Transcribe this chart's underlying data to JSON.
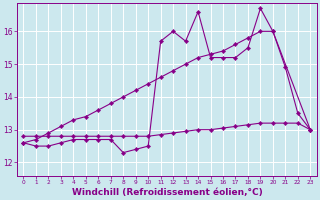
{
  "background_color": "#cce8ee",
  "grid_color": "#ffffff",
  "line_color": "#880088",
  "xlabel": "Windchill (Refroidissement éolien,°C)",
  "xlabel_fontsize": 6.5,
  "xtick_labels": [
    "0",
    "1",
    "2",
    "3",
    "4",
    "5",
    "6",
    "7",
    "8",
    "9",
    "10",
    "11",
    "12",
    "13",
    "14",
    "15",
    "16",
    "17",
    "18",
    "19",
    "20",
    "21",
    "22",
    "23"
  ],
  "ytick_vals": [
    12,
    13,
    14,
    15,
    16
  ],
  "ylim": [
    11.6,
    16.85
  ],
  "xlim": [
    -0.5,
    23.5
  ],
  "series1_x": [
    0,
    1,
    2,
    3,
    4,
    5,
    6,
    7,
    8,
    9,
    10,
    11,
    12,
    13,
    14,
    15,
    16,
    17,
    18,
    19,
    20,
    21,
    22,
    23
  ],
  "series1_y": [
    12.6,
    12.5,
    12.5,
    12.6,
    12.7,
    12.7,
    12.7,
    12.7,
    12.3,
    12.4,
    12.5,
    15.7,
    16.0,
    15.7,
    16.6,
    15.2,
    15.2,
    15.2,
    15.5,
    16.7,
    16.0,
    14.9,
    13.5,
    13.0
  ],
  "series2_x": [
    0,
    1,
    2,
    3,
    4,
    5,
    6,
    7,
    8,
    9,
    10,
    11,
    12,
    13,
    14,
    15,
    16,
    17,
    18,
    19,
    20,
    23
  ],
  "series2_y": [
    12.6,
    12.7,
    12.9,
    13.1,
    13.3,
    13.4,
    13.6,
    13.8,
    14.0,
    14.2,
    14.4,
    14.6,
    14.8,
    15.0,
    15.2,
    15.3,
    15.4,
    15.6,
    15.8,
    16.0,
    16.0,
    13.0
  ],
  "series3_x": [
    0,
    1,
    2,
    3,
    4,
    5,
    6,
    7,
    8,
    9,
    10,
    11,
    12,
    13,
    14,
    15,
    16,
    17,
    18,
    19,
    20,
    21,
    22,
    23
  ],
  "series3_y": [
    12.8,
    12.8,
    12.8,
    12.8,
    12.8,
    12.8,
    12.8,
    12.8,
    12.8,
    12.8,
    12.8,
    12.85,
    12.9,
    12.95,
    13.0,
    13.0,
    13.05,
    13.1,
    13.15,
    13.2,
    13.2,
    13.2,
    13.2,
    13.0
  ]
}
